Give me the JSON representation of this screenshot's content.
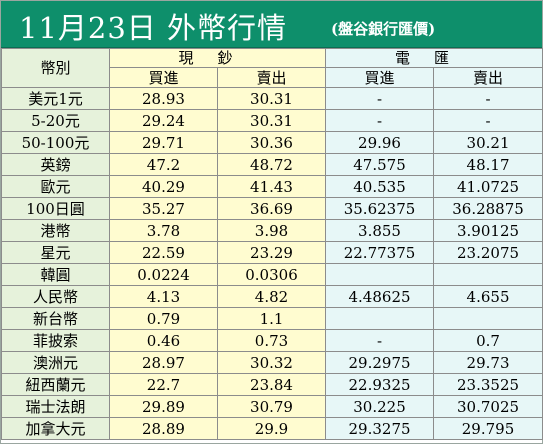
{
  "title": "11月23日 外幣行情",
  "subtitle": "(盤谷銀行匯價)",
  "columns": {
    "currency": "幣別",
    "cash": "現鈔",
    "tt": "電匯",
    "buy": "買進",
    "sell": "賣出"
  },
  "rows": [
    {
      "name": "美元1元",
      "cash_buy": "28.93",
      "cash_sell": "30.31",
      "tt_buy": "-",
      "tt_sell": "-"
    },
    {
      "name": "5-20元",
      "cash_buy": "29.24",
      "cash_sell": "30.31",
      "tt_buy": "-",
      "tt_sell": "-"
    },
    {
      "name": "50-100元",
      "cash_buy": "29.71",
      "cash_sell": "30.36",
      "tt_buy": "29.96",
      "tt_sell": "30.21"
    },
    {
      "name": "英鎊",
      "cash_buy": "47.2",
      "cash_sell": "48.72",
      "tt_buy": "47.575",
      "tt_sell": "48.17"
    },
    {
      "name": "歐元",
      "cash_buy": "40.29",
      "cash_sell": "41.43",
      "tt_buy": "40.535",
      "tt_sell": "41.0725"
    },
    {
      "name": "100日圓",
      "cash_buy": "35.27",
      "cash_sell": "36.69",
      "tt_buy": "35.62375",
      "tt_sell": "36.28875"
    },
    {
      "name": "港幣",
      "cash_buy": "3.78",
      "cash_sell": "3.98",
      "tt_buy": "3.855",
      "tt_sell": "3.90125"
    },
    {
      "name": "星元",
      "cash_buy": "22.59",
      "cash_sell": "23.29",
      "tt_buy": "22.77375",
      "tt_sell": "23.2075"
    },
    {
      "name": "韓圓",
      "cash_buy": "0.0224",
      "cash_sell": "0.0306",
      "tt_buy": "",
      "tt_sell": ""
    },
    {
      "name": "人民幣",
      "cash_buy": "4.13",
      "cash_sell": "4.82",
      "tt_buy": "4.48625",
      "tt_sell": "4.655"
    },
    {
      "name": "新台幣",
      "cash_buy": "0.79",
      "cash_sell": "1.1",
      "tt_buy": "",
      "tt_sell": ""
    },
    {
      "name": "菲披索",
      "cash_buy": "0.46",
      "cash_sell": "0.73",
      "tt_buy": "-",
      "tt_sell": "0.7"
    },
    {
      "name": "澳洲元",
      "cash_buy": "28.97",
      "cash_sell": "30.32",
      "tt_buy": "29.2975",
      "tt_sell": "29.73"
    },
    {
      "name": "紐西蘭元",
      "cash_buy": "22.7",
      "cash_sell": "23.84",
      "tt_buy": "22.9325",
      "tt_sell": "23.3525"
    },
    {
      "name": "瑞士法朗",
      "cash_buy": "29.89",
      "cash_sell": "30.79",
      "tt_buy": "30.225",
      "tt_sell": "30.7025"
    },
    {
      "name": "加拿大元",
      "cash_buy": "28.89",
      "cash_sell": "29.9",
      "tt_buy": "29.3275",
      "tt_sell": "29.795"
    }
  ]
}
